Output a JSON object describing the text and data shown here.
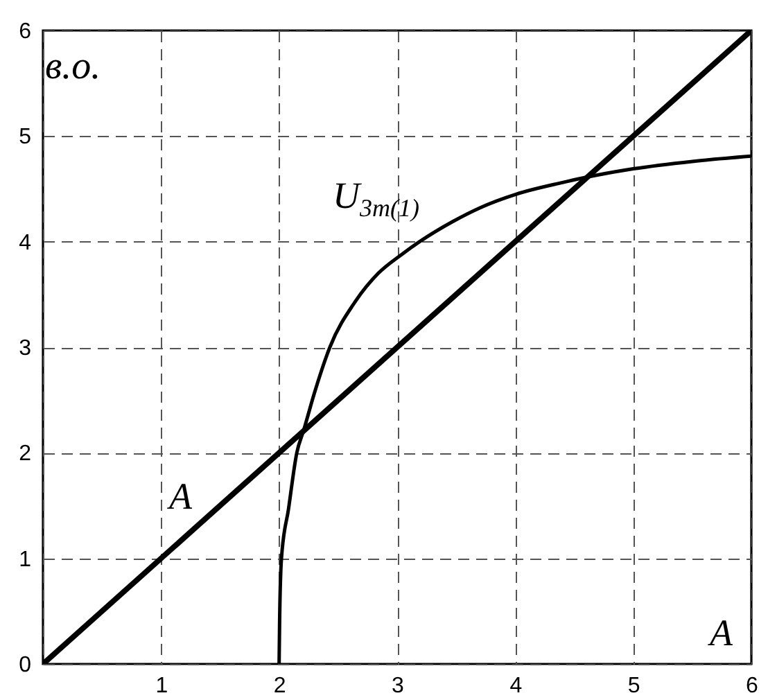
{
  "chart_data": {
    "type": "line",
    "xlabel": "A",
    "ylabel": "в.о.",
    "xlim": [
      0,
      6
    ],
    "ylim": [
      0,
      6
    ],
    "xticks": [
      {
        "value": 0,
        "label": null
      },
      1,
      2,
      3,
      4,
      5,
      6
    ],
    "yticks": [
      0,
      1,
      2,
      3,
      4,
      5,
      6
    ],
    "grid": true,
    "series": [
      {
        "name": "U$_{3m(1)}$",
        "color": "#000000",
        "x": [
          2,
          2.004,
          2.02,
          2.08,
          2.15,
          2.21,
          2.3,
          2.43,
          2.65,
          2.84,
          3.04,
          3.19,
          3.47,
          3.7,
          4.01,
          4.4,
          4.56,
          5.0,
          5.5,
          6.0
        ],
        "values": [
          0,
          0.38,
          1.0,
          1.47,
          2.0,
          2.22,
          2.57,
          3.0,
          3.44,
          3.7,
          3.88,
          4.0,
          4.19,
          4.32,
          4.45,
          4.56,
          4.6,
          4.69,
          4.76,
          4.81
        ]
      },
      {
        "name": "A",
        "color": "#000000",
        "x": [
          0,
          6
        ],
        "values": [
          0,
          6
        ]
      }
    ]
  }
}
